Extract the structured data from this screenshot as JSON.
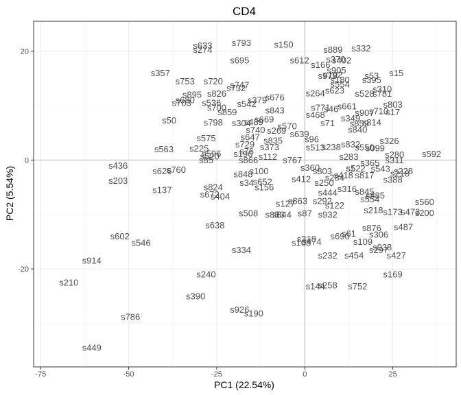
{
  "chart_data": {
    "type": "scatter",
    "title": "CD4",
    "xlabel": "PC1 (22.54%)",
    "ylabel": "PC2 (5.54%)",
    "xlim": [
      -77,
      43
    ],
    "ylim": [
      -38,
      25.5
    ],
    "xticks": [
      -75,
      -50,
      -25,
      0,
      25
    ],
    "yticks": [
      -20,
      0,
      20
    ],
    "xtick_labels": [
      "-75",
      "-50",
      "-25",
      "0",
      "25"
    ],
    "ytick_labels": [
      "-20",
      "0",
      "20"
    ],
    "zero_lines": true,
    "grid": true,
    "points": [
      {
        "label": "s633",
        "x": -29,
        "y": 21
      },
      {
        "label": "s274",
        "x": -29,
        "y": 20.3
      },
      {
        "label": "s793",
        "x": -18,
        "y": 21.5
      },
      {
        "label": "s150",
        "x": -6,
        "y": 21.2
      },
      {
        "label": "s695",
        "x": -18.5,
        "y": 18.3
      },
      {
        "label": "s612",
        "x": -1.5,
        "y": 18.3
      },
      {
        "label": "s889",
        "x": 8,
        "y": 20.3
      },
      {
        "label": "s332",
        "x": 16,
        "y": 20.5
      },
      {
        "label": "s370",
        "x": 8.8,
        "y": 18.5
      },
      {
        "label": "s402",
        "x": 10.5,
        "y": 18.3
      },
      {
        "label": "s166",
        "x": 4.5,
        "y": 17.5
      },
      {
        "label": "s905",
        "x": 9,
        "y": 16.5
      },
      {
        "label": "s357",
        "x": -41,
        "y": 16
      },
      {
        "label": "s753",
        "x": -34,
        "y": 14.5
      },
      {
        "label": "s720",
        "x": -26,
        "y": 14.5
      },
      {
        "label": "s747",
        "x": -18.5,
        "y": 13.8
      },
      {
        "label": "s732",
        "x": -19.5,
        "y": 13.2
      },
      {
        "label": "s826",
        "x": -25,
        "y": 12.2
      },
      {
        "label": "s895",
        "x": -32,
        "y": 12
      },
      {
        "label": "s680",
        "x": -34,
        "y": 11
      },
      {
        "label": "s703",
        "x": -35,
        "y": 10.5
      },
      {
        "label": "s536",
        "x": -26.5,
        "y": 10.5
      },
      {
        "label": "s700",
        "x": -25,
        "y": 9.6
      },
      {
        "label": "s542",
        "x": -16.5,
        "y": 10.3
      },
      {
        "label": "s379",
        "x": -13.5,
        "y": 11
      },
      {
        "label": "s676",
        "x": -8.5,
        "y": 11.5
      },
      {
        "label": "s859",
        "x": -22,
        "y": 8.8
      },
      {
        "label": "s843",
        "x": -8.5,
        "y": 9.1
      },
      {
        "label": "s50",
        "x": -38.5,
        "y": 7.3
      },
      {
        "label": "s798",
        "x": -26,
        "y": 6.9
      },
      {
        "label": "s304",
        "x": -18,
        "y": 6.8
      },
      {
        "label": "s489",
        "x": -14.5,
        "y": 7
      },
      {
        "label": "s669",
        "x": -11.5,
        "y": 7.5
      },
      {
        "label": "s570",
        "x": -5,
        "y": 6.2
      },
      {
        "label": "s740",
        "x": -14,
        "y": 5.5
      },
      {
        "label": "s269",
        "x": -8,
        "y": 5.4
      },
      {
        "label": "s639",
        "x": -1.5,
        "y": 4.8
      },
      {
        "label": "s647",
        "x": -15.5,
        "y": 4.2
      },
      {
        "label": "s835",
        "x": -9,
        "y": 3.6
      },
      {
        "label": "s575",
        "x": -28,
        "y": 4
      },
      {
        "label": "s96",
        "x": 2,
        "y": 3.8
      },
      {
        "label": "s563",
        "x": -40,
        "y": 2
      },
      {
        "label": "s225",
        "x": -30,
        "y": 2.1
      },
      {
        "label": "s729",
        "x": -17,
        "y": 2.9
      },
      {
        "label": "s373",
        "x": -10,
        "y": 2.4
      },
      {
        "label": "s513",
        "x": 3,
        "y": 2.3
      },
      {
        "label": "s238",
        "x": 7.5,
        "y": 2.4
      },
      {
        "label": "s832",
        "x": 13,
        "y": 2.9
      },
      {
        "label": "s550",
        "x": 17,
        "y": 2.3
      },
      {
        "label": "s099",
        "x": 20,
        "y": 2.2
      },
      {
        "label": "s326",
        "x": 24,
        "y": 3.5
      },
      {
        "label": "s592",
        "x": 36,
        "y": 1.1
      },
      {
        "label": "s280",
        "x": 25.5,
        "y": 1
      },
      {
        "label": "s311",
        "x": 25.5,
        "y": 0
      },
      {
        "label": "s596",
        "x": -26.5,
        "y": 1.2
      },
      {
        "label": "s520",
        "x": -27,
        "y": 0.7
      },
      {
        "label": "s85",
        "x": -28,
        "y": 0
      },
      {
        "label": "s196",
        "x": -17.5,
        "y": 1.1
      },
      {
        "label": "s76",
        "x": -16.5,
        "y": 1.6
      },
      {
        "label": "s866",
        "x": -16,
        "y": 0
      },
      {
        "label": "s112",
        "x": -10.5,
        "y": 0.6
      },
      {
        "label": "s767",
        "x": -3.5,
        "y": 0
      },
      {
        "label": "s283",
        "x": 12.5,
        "y": 0.6
      },
      {
        "label": "s365",
        "x": 18.5,
        "y": -0.5
      },
      {
        "label": "s1",
        "x": 13,
        "y": -1.5
      },
      {
        "label": "s436",
        "x": -53,
        "y": -1
      },
      {
        "label": "s626",
        "x": -40.5,
        "y": -2
      },
      {
        "label": "s760",
        "x": -36.5,
        "y": -1.8
      },
      {
        "label": "s100",
        "x": -13,
        "y": -2
      },
      {
        "label": "s848",
        "x": -17.5,
        "y": -2.6
      },
      {
        "label": "s360",
        "x": 1.5,
        "y": -1.4
      },
      {
        "label": "s803",
        "x": 5,
        "y": -2
      },
      {
        "label": "s522",
        "x": 14.5,
        "y": -1.5
      },
      {
        "label": "s543",
        "x": 21.5,
        "y": -1.6
      },
      {
        "label": "s228",
        "x": 28,
        "y": -2
      },
      {
        "label": "s218",
        "x": 27,
        "y": -2.5
      },
      {
        "label": "s418",
        "x": 11,
        "y": -2.8
      },
      {
        "label": "s817",
        "x": 17,
        "y": -2.8
      },
      {
        "label": "s388",
        "x": 25,
        "y": -3.6
      },
      {
        "label": "s203",
        "x": -53,
        "y": -3.8
      },
      {
        "label": "s652",
        "x": -12,
        "y": -4
      },
      {
        "label": "s34",
        "x": -16.5,
        "y": -4.2
      },
      {
        "label": "s412",
        "x": -1,
        "y": -3.5
      },
      {
        "label": "s250",
        "x": 5.5,
        "y": -4.2
      },
      {
        "label": "s284",
        "x": 8.5,
        "y": -3.2
      },
      {
        "label": "s137",
        "x": -40.5,
        "y": -5.5
      },
      {
        "label": "s156",
        "x": -11.5,
        "y": -5
      },
      {
        "label": "s824",
        "x": -26,
        "y": -5
      },
      {
        "label": "s672",
        "x": -27,
        "y": -6.3
      },
      {
        "label": "s404",
        "x": -24,
        "y": -6.7
      },
      {
        "label": "s316",
        "x": 12,
        "y": -5.3
      },
      {
        "label": "s444",
        "x": 6.5,
        "y": -6
      },
      {
        "label": "s845",
        "x": 17,
        "y": -5.8
      },
      {
        "label": "s885",
        "x": 20,
        "y": -6.5
      },
      {
        "label": "s554",
        "x": 18.5,
        "y": -7.2
      },
      {
        "label": "s863",
        "x": -2,
        "y": -7.5
      },
      {
        "label": "s292",
        "x": 5,
        "y": -7.5
      },
      {
        "label": "s127",
        "x": -5.5,
        "y": -8
      },
      {
        "label": "s122",
        "x": 8.5,
        "y": -8.3
      },
      {
        "label": "s218b",
        "x": 19.5,
        "y": -9.2
      },
      {
        "label": "s560",
        "x": 34,
        "y": -7.7
      },
      {
        "label": "s173",
        "x": 25,
        "y": -9.5
      },
      {
        "label": "s473",
        "x": 30,
        "y": -9.5
      },
      {
        "label": "s200",
        "x": 34,
        "y": -9.7
      },
      {
        "label": "s508",
        "x": -16,
        "y": -9.8
      },
      {
        "label": "s883",
        "x": -8.5,
        "y": -10
      },
      {
        "label": "s844",
        "x": -6.5,
        "y": -10
      },
      {
        "label": "s87",
        "x": 0,
        "y": -9.8
      },
      {
        "label": "s932",
        "x": 6.5,
        "y": -10
      },
      {
        "label": "s638",
        "x": -25.5,
        "y": -12
      },
      {
        "label": "s876",
        "x": 19,
        "y": -12.5
      },
      {
        "label": "s487",
        "x": 28,
        "y": -12.3
      },
      {
        "label": "s306",
        "x": 21,
        "y": -13.7
      },
      {
        "label": "s61",
        "x": 12.5,
        "y": -13.5
      },
      {
        "label": "s690",
        "x": 10,
        "y": -14
      },
      {
        "label": "s602",
        "x": -52.5,
        "y": -14
      },
      {
        "label": "s546",
        "x": -46.5,
        "y": -15.2
      },
      {
        "label": "s318",
        "x": 0.5,
        "y": -14.5
      },
      {
        "label": "s105",
        "x": -1,
        "y": -15.2
      },
      {
        "label": "s474",
        "x": 2,
        "y": -15
      },
      {
        "label": "s109",
        "x": 16.5,
        "y": -15
      },
      {
        "label": "s938",
        "x": 22,
        "y": -16
      },
      {
        "label": "s297",
        "x": 21,
        "y": -16.5
      },
      {
        "label": "s334",
        "x": -18,
        "y": -16.5
      },
      {
        "label": "s232",
        "x": 6.5,
        "y": -17.5
      },
      {
        "label": "s454",
        "x": 14,
        "y": -17.5
      },
      {
        "label": "s427",
        "x": 26,
        "y": -17.5
      },
      {
        "label": "s914",
        "x": -60.5,
        "y": -18.5
      },
      {
        "label": "s240",
        "x": -28,
        "y": -21
      },
      {
        "label": "s169",
        "x": 25,
        "y": -21
      },
      {
        "label": "s210",
        "x": -67,
        "y": -22.5
      },
      {
        "label": "s144",
        "x": 3,
        "y": -23.2
      },
      {
        "label": "s258",
        "x": 6.5,
        "y": -23
      },
      {
        "label": "s752",
        "x": 15,
        "y": -23.2
      },
      {
        "label": "s390",
        "x": -31,
        "y": -25
      },
      {
        "label": "s926",
        "x": -18.5,
        "y": -27.5
      },
      {
        "label": "s190",
        "x": -14.5,
        "y": -28.2
      },
      {
        "label": "s786",
        "x": -49.5,
        "y": -28.8
      },
      {
        "label": "s449",
        "x": -60.5,
        "y": -34.5
      },
      {
        "label": "s979",
        "x": 6.5,
        "y": 15.5
      },
      {
        "label": "s192",
        "x": 8,
        "y": 15.7
      },
      {
        "label": "s180",
        "x": 10,
        "y": 14.7
      },
      {
        "label": "s554b",
        "x": 10,
        "y": 13.9
      },
      {
        "label": "s53",
        "x": 19,
        "y": 15.5
      },
      {
        "label": "s395",
        "x": 19,
        "y": 14.7
      },
      {
        "label": "s15",
        "x": 26,
        "y": 16
      },
      {
        "label": "s310",
        "x": 22,
        "y": 13
      },
      {
        "label": "s264",
        "x": 3,
        "y": 12.3
      },
      {
        "label": "s623",
        "x": 8.5,
        "y": 12.8
      },
      {
        "label": "s528",
        "x": 17,
        "y": 12.2
      },
      {
        "label": "s781",
        "x": 22,
        "y": 12.2
      },
      {
        "label": "s771",
        "x": 4.5,
        "y": 9.6
      },
      {
        "label": "s46",
        "x": 7.5,
        "y": 9.4
      },
      {
        "label": "s661",
        "x": 12,
        "y": 9.9
      },
      {
        "label": "s803b",
        "x": 25,
        "y": 10.2
      },
      {
        "label": "s468",
        "x": 3,
        "y": 8.3
      },
      {
        "label": "s907",
        "x": 17,
        "y": 8.7
      },
      {
        "label": "s710",
        "x": 21,
        "y": 9
      },
      {
        "label": "s17",
        "x": 25,
        "y": 8.8
      },
      {
        "label": "s71",
        "x": 6.5,
        "y": 6.8
      },
      {
        "label": "s349",
        "x": 13,
        "y": 7.7
      },
      {
        "label": "s859b",
        "x": 15.5,
        "y": 6.7
      },
      {
        "label": "s814",
        "x": 19,
        "y": 6.9
      },
      {
        "label": "s840",
        "x": 15,
        "y": 5.6
      }
    ]
  }
}
